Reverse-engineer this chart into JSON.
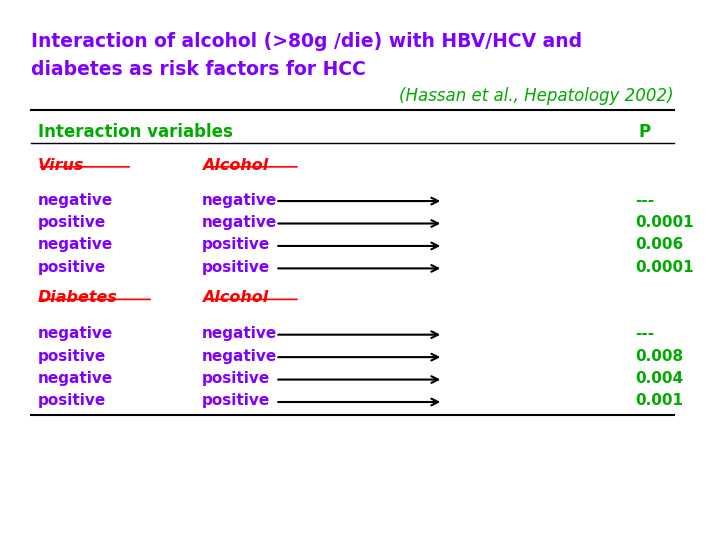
{
  "title_line1": "Interaction of alcohol (>80g /die) with HBV/HCV and",
  "title_line2": "diabetes as risk factors for HCC",
  "subtitle": "(Hassan et al., Hepatology 2002)",
  "title_color": "#8000ff",
  "subtitle_color": "#00aa00",
  "header_label": "Interaction variables",
  "header_p": "P",
  "header_color": "#00aa00",
  "background_color": "#ffffff",
  "section1_col1_label": "Virus",
  "section1_col2_label": "Alcohol",
  "section1_color": "#ff0000",
  "section2_col1_label": "Diabetes",
  "section2_col2_label": "Alcohol",
  "section2_color": "#ff0000",
  "row_col1_color": "#8000ff",
  "row_col2_color": "#8000ff",
  "p_color": "#00aa00",
  "rows_section1": [
    {
      "col1": "negative",
      "col2": "negative",
      "p": "---"
    },
    {
      "col1": "positive",
      "col2": "negative",
      "p": "0.0001"
    },
    {
      "col1": "negative",
      "col2": "positive",
      "p": "0.006"
    },
    {
      "col1": "positive",
      "col2": "positive",
      "p": "0.0001"
    }
  ],
  "rows_section2": [
    {
      "col1": "negative",
      "col2": "negative",
      "p": "---"
    },
    {
      "col1": "positive",
      "col2": "negative",
      "p": "0.008"
    },
    {
      "col1": "negative",
      "col2": "positive",
      "p": "0.004"
    },
    {
      "col1": "positive",
      "col2": "positive",
      "p": "0.001"
    }
  ],
  "font_family": "Comic Sans MS"
}
